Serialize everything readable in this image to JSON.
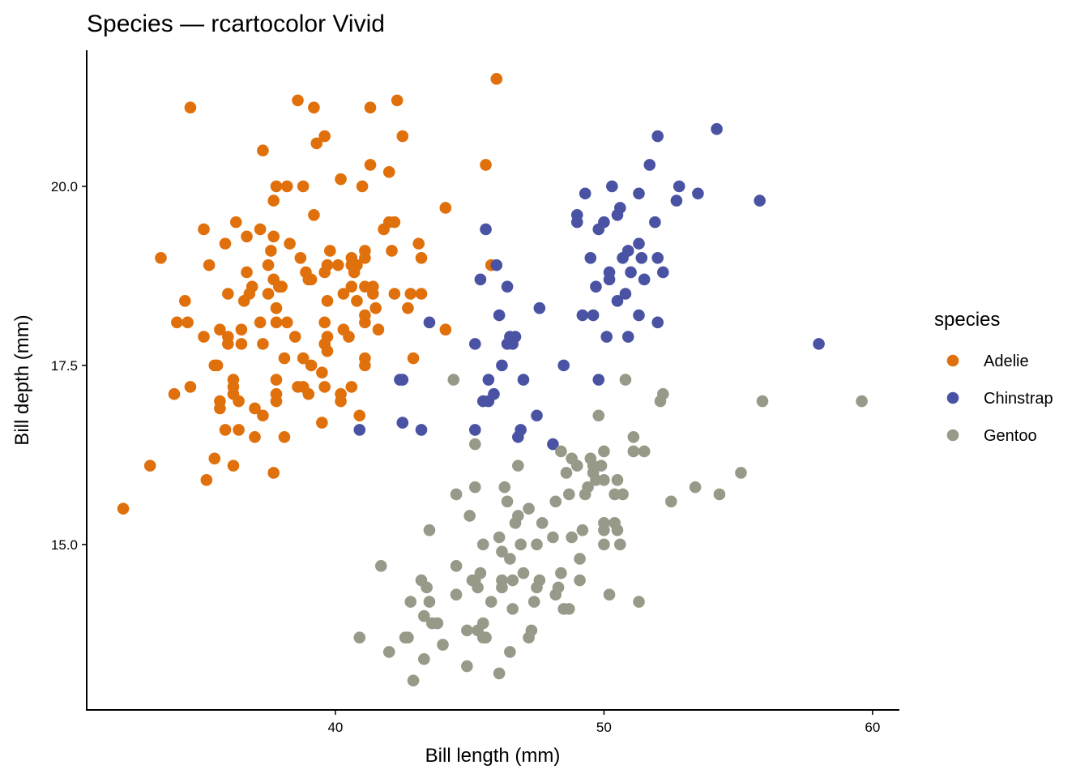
{
  "chart_data": {
    "type": "scatter",
    "title": "Species — rcartocolor Vivid",
    "xlabel": "Bill length (mm)",
    "ylabel": "Bill depth (mm)",
    "xlim": [
      30.74,
      61.0
    ],
    "ylim": [
      12.69,
      21.9
    ],
    "x_ticks": [
      40,
      50,
      60
    ],
    "x_tick_labels": [
      "40",
      "50",
      "60"
    ],
    "y_ticks": [
      15.0,
      17.5,
      20.0
    ],
    "y_tick_labels": [
      "15.0",
      "17.5",
      "20.0"
    ],
    "grid": false,
    "legend": {
      "title": "species",
      "placement": "right"
    },
    "series": [
      {
        "name": "Adelie",
        "color": "#E0700C",
        "points": [
          [
            32.1,
            15.5
          ],
          [
            33.1,
            16.1
          ],
          [
            33.5,
            19.0
          ],
          [
            34.6,
            21.1
          ],
          [
            34.1,
            18.1
          ],
          [
            34.4,
            18.4
          ],
          [
            34.5,
            18.1
          ],
          [
            34.0,
            17.1
          ],
          [
            34.6,
            17.2
          ],
          [
            35.1,
            17.9
          ],
          [
            35.1,
            19.4
          ],
          [
            35.3,
            18.9
          ],
          [
            35.2,
            15.9
          ],
          [
            35.5,
            16.2
          ],
          [
            35.5,
            17.5
          ],
          [
            35.6,
            17.5
          ],
          [
            35.7,
            18.0
          ],
          [
            35.7,
            17.0
          ],
          [
            35.7,
            16.9
          ],
          [
            35.9,
            19.2
          ],
          [
            36.0,
            17.9
          ],
          [
            36.0,
            17.8
          ],
          [
            36.0,
            18.5
          ],
          [
            35.9,
            16.6
          ],
          [
            36.3,
            19.5
          ],
          [
            36.2,
            17.3
          ],
          [
            36.2,
            17.2
          ],
          [
            36.2,
            17.1
          ],
          [
            36.2,
            16.1
          ],
          [
            36.4,
            17.0
          ],
          [
            36.5,
            18.0
          ],
          [
            36.4,
            16.6
          ],
          [
            36.5,
            17.8
          ],
          [
            36.6,
            18.4
          ],
          [
            36.7,
            19.3
          ],
          [
            36.7,
            18.8
          ],
          [
            36.8,
            18.5
          ],
          [
            36.9,
            18.6
          ],
          [
            37.0,
            16.9
          ],
          [
            37.0,
            16.5
          ],
          [
            37.2,
            18.1
          ],
          [
            37.3,
            17.8
          ],
          [
            37.2,
            19.4
          ],
          [
            37.3,
            20.5
          ],
          [
            37.3,
            16.8
          ],
          [
            37.5,
            18.5
          ],
          [
            37.5,
            18.9
          ],
          [
            37.6,
            19.1
          ],
          [
            37.7,
            19.8
          ],
          [
            37.7,
            19.3
          ],
          [
            37.7,
            18.7
          ],
          [
            37.7,
            16.0
          ],
          [
            37.8,
            20.0
          ],
          [
            37.8,
            18.1
          ],
          [
            37.8,
            18.3
          ],
          [
            37.8,
            17.3
          ],
          [
            37.8,
            17.1
          ],
          [
            37.8,
            17.0
          ],
          [
            37.9,
            18.6
          ],
          [
            38.0,
            18.6
          ],
          [
            38.1,
            17.6
          ],
          [
            38.1,
            16.5
          ],
          [
            38.2,
            20.0
          ],
          [
            38.2,
            18.1
          ],
          [
            38.3,
            19.2
          ],
          [
            38.5,
            17.9
          ],
          [
            38.6,
            17.2
          ],
          [
            38.6,
            21.2
          ],
          [
            38.7,
            19.0
          ],
          [
            38.8,
            17.6
          ],
          [
            38.8,
            20.0
          ],
          [
            38.8,
            17.2
          ],
          [
            38.9,
            18.8
          ],
          [
            39.0,
            17.1
          ],
          [
            39.0,
            18.7
          ],
          [
            39.1,
            18.7
          ],
          [
            39.1,
            17.5
          ],
          [
            39.2,
            19.6
          ],
          [
            39.2,
            21.1
          ],
          [
            39.3,
            20.6
          ],
          [
            39.5,
            17.4
          ],
          [
            39.5,
            16.7
          ],
          [
            39.6,
            20.7
          ],
          [
            39.6,
            18.8
          ],
          [
            39.6,
            18.1
          ],
          [
            39.6,
            17.8
          ],
          [
            39.6,
            17.2
          ],
          [
            39.7,
            17.9
          ],
          [
            39.7,
            18.4
          ],
          [
            39.7,
            18.9
          ],
          [
            39.8,
            19.1
          ],
          [
            39.7,
            17.7
          ],
          [
            40.1,
            18.9
          ],
          [
            40.2,
            20.1
          ],
          [
            40.2,
            17.1
          ],
          [
            40.2,
            17.0
          ],
          [
            40.3,
            18.0
          ],
          [
            40.3,
            18.5
          ],
          [
            40.5,
            17.9
          ],
          [
            40.6,
            18.6
          ],
          [
            40.6,
            18.9
          ],
          [
            40.6,
            19.0
          ],
          [
            40.6,
            17.2
          ],
          [
            40.7,
            18.8
          ],
          [
            40.8,
            18.4
          ],
          [
            40.8,
            18.9
          ],
          [
            40.9,
            16.8
          ],
          [
            41.0,
            20.0
          ],
          [
            41.1,
            19.1
          ],
          [
            41.1,
            19.0
          ],
          [
            41.1,
            18.6
          ],
          [
            41.1,
            18.2
          ],
          [
            41.1,
            18.1
          ],
          [
            41.1,
            17.6
          ],
          [
            41.1,
            17.5
          ],
          [
            41.3,
            21.1
          ],
          [
            41.3,
            20.3
          ],
          [
            41.4,
            18.6
          ],
          [
            41.4,
            18.5
          ],
          [
            41.5,
            18.3
          ],
          [
            41.6,
            18.0
          ],
          [
            42.0,
            20.2
          ],
          [
            41.8,
            19.4
          ],
          [
            42.0,
            19.5
          ],
          [
            42.1,
            19.1
          ],
          [
            42.2,
            19.5
          ],
          [
            42.2,
            18.5
          ],
          [
            42.3,
            21.2
          ],
          [
            42.5,
            20.7
          ],
          [
            42.7,
            18.3
          ],
          [
            42.8,
            18.5
          ],
          [
            42.9,
            17.6
          ],
          [
            43.1,
            19.2
          ],
          [
            43.2,
            19.0
          ],
          [
            43.2,
            18.5
          ],
          [
            44.1,
            19.7
          ],
          [
            44.1,
            18.0
          ],
          [
            45.6,
            20.3
          ],
          [
            45.8,
            18.9
          ],
          [
            46.0,
            21.5
          ]
        ]
      },
      {
        "name": "Chinstrap",
        "color": "#4A53A3",
        "points": [
          [
            40.9,
            16.6
          ],
          [
            42.4,
            17.3
          ],
          [
            42.5,
            17.3
          ],
          [
            42.5,
            16.7
          ],
          [
            43.2,
            16.6
          ],
          [
            43.5,
            18.1
          ],
          [
            45.2,
            17.8
          ],
          [
            45.2,
            16.6
          ],
          [
            45.4,
            18.7
          ],
          [
            45.5,
            17.0
          ],
          [
            45.6,
            19.4
          ],
          [
            45.7,
            17.0
          ],
          [
            45.7,
            17.3
          ],
          [
            45.9,
            17.1
          ],
          [
            46.0,
            18.9
          ],
          [
            46.1,
            18.2
          ],
          [
            46.2,
            17.5
          ],
          [
            46.4,
            18.6
          ],
          [
            46.4,
            17.8
          ],
          [
            46.5,
            17.9
          ],
          [
            46.6,
            17.8
          ],
          [
            46.7,
            17.9
          ],
          [
            46.8,
            16.5
          ],
          [
            46.9,
            16.6
          ],
          [
            47.0,
            17.3
          ],
          [
            47.5,
            16.8
          ],
          [
            47.6,
            18.3
          ],
          [
            48.1,
            16.4
          ],
          [
            48.5,
            17.5
          ],
          [
            49.0,
            19.6
          ],
          [
            49.0,
            19.5
          ],
          [
            49.2,
            18.2
          ],
          [
            49.3,
            19.9
          ],
          [
            49.5,
            19.0
          ],
          [
            49.6,
            18.2
          ],
          [
            49.7,
            18.6
          ],
          [
            49.8,
            17.3
          ],
          [
            49.8,
            19.4
          ],
          [
            50.0,
            19.5
          ],
          [
            50.1,
            17.9
          ],
          [
            50.2,
            18.7
          ],
          [
            50.2,
            18.8
          ],
          [
            50.3,
            20.0
          ],
          [
            50.5,
            19.6
          ],
          [
            50.6,
            19.7
          ],
          [
            50.5,
            18.4
          ],
          [
            50.7,
            19.0
          ],
          [
            50.8,
            18.5
          ],
          [
            50.9,
            19.1
          ],
          [
            50.9,
            17.9
          ],
          [
            51.0,
            18.8
          ],
          [
            51.3,
            19.2
          ],
          [
            51.3,
            18.2
          ],
          [
            51.3,
            19.9
          ],
          [
            51.4,
            19.0
          ],
          [
            51.5,
            18.7
          ],
          [
            51.7,
            20.3
          ],
          [
            51.9,
            19.5
          ],
          [
            52.0,
            20.7
          ],
          [
            52.0,
            19.0
          ],
          [
            52.0,
            18.1
          ],
          [
            52.2,
            18.8
          ],
          [
            52.7,
            19.8
          ],
          [
            52.8,
            20.0
          ],
          [
            53.5,
            19.9
          ],
          [
            54.2,
            20.8
          ],
          [
            55.8,
            19.8
          ],
          [
            58.0,
            17.8
          ]
        ]
      },
      {
        "name": "Gentoo",
        "color": "#979A88",
        "points": [
          [
            40.9,
            13.7
          ],
          [
            41.7,
            14.7
          ],
          [
            42.0,
            13.5
          ],
          [
            42.6,
            13.7
          ],
          [
            42.7,
            13.7
          ],
          [
            42.8,
            14.2
          ],
          [
            42.9,
            13.1
          ],
          [
            43.2,
            14.5
          ],
          [
            43.3,
            13.4
          ],
          [
            43.4,
            14.4
          ],
          [
            43.3,
            14.0
          ],
          [
            43.5,
            14.2
          ],
          [
            43.6,
            13.9
          ],
          [
            43.8,
            13.9
          ],
          [
            43.5,
            15.2
          ],
          [
            44.0,
            13.6
          ],
          [
            44.4,
            17.3
          ],
          [
            44.5,
            15.7
          ],
          [
            44.5,
            14.7
          ],
          [
            44.5,
            14.3
          ],
          [
            44.9,
            13.3
          ],
          [
            44.9,
            13.8
          ],
          [
            45.0,
            15.4
          ],
          [
            45.1,
            14.5
          ],
          [
            45.2,
            14.5
          ],
          [
            45.2,
            16.4
          ],
          [
            45.2,
            15.8
          ],
          [
            45.3,
            14.4
          ],
          [
            45.3,
            13.8
          ],
          [
            45.4,
            14.6
          ],
          [
            45.5,
            15.0
          ],
          [
            45.5,
            13.9
          ],
          [
            45.5,
            13.7
          ],
          [
            45.6,
            13.7
          ],
          [
            45.8,
            14.2
          ],
          [
            46.1,
            15.1
          ],
          [
            46.1,
            13.2
          ],
          [
            46.2,
            14.9
          ],
          [
            46.2,
            14.5
          ],
          [
            46.2,
            14.4
          ],
          [
            46.3,
            15.8
          ],
          [
            46.4,
            15.6
          ],
          [
            46.5,
            14.8
          ],
          [
            46.5,
            13.5
          ],
          [
            46.6,
            14.1
          ],
          [
            46.6,
            14.5
          ],
          [
            46.7,
            15.3
          ],
          [
            46.8,
            16.1
          ],
          [
            46.8,
            15.4
          ],
          [
            46.9,
            15.0
          ],
          [
            47.0,
            14.6
          ],
          [
            47.2,
            15.5
          ],
          [
            47.2,
            13.7
          ],
          [
            47.3,
            13.8
          ],
          [
            47.4,
            14.2
          ],
          [
            47.5,
            15.0
          ],
          [
            47.5,
            14.4
          ],
          [
            47.7,
            15.3
          ],
          [
            47.6,
            14.5
          ],
          [
            48.1,
            15.1
          ],
          [
            48.2,
            15.6
          ],
          [
            48.2,
            14.3
          ],
          [
            48.3,
            14.4
          ],
          [
            48.4,
            14.6
          ],
          [
            48.4,
            16.3
          ],
          [
            48.5,
            14.1
          ],
          [
            48.6,
            16.0
          ],
          [
            48.7,
            15.7
          ],
          [
            48.7,
            14.1
          ],
          [
            48.8,
            16.2
          ],
          [
            48.8,
            15.1
          ],
          [
            49.0,
            16.1
          ],
          [
            49.1,
            14.5
          ],
          [
            49.1,
            14.8
          ],
          [
            49.2,
            15.2
          ],
          [
            49.3,
            15.7
          ],
          [
            49.4,
            15.8
          ],
          [
            49.5,
            16.2
          ],
          [
            49.6,
            16.1
          ],
          [
            49.6,
            16.0
          ],
          [
            49.7,
            15.9
          ],
          [
            49.8,
            16.8
          ],
          [
            49.9,
            16.1
          ],
          [
            50.0,
            16.3
          ],
          [
            50.0,
            15.9
          ],
          [
            50.0,
            15.3
          ],
          [
            50.0,
            15.2
          ],
          [
            50.0,
            15.0
          ],
          [
            50.2,
            14.3
          ],
          [
            50.4,
            15.7
          ],
          [
            50.4,
            15.3
          ],
          [
            50.5,
            15.2
          ],
          [
            50.5,
            15.9
          ],
          [
            50.6,
            15.0
          ],
          [
            50.7,
            15.7
          ],
          [
            50.8,
            17.3
          ],
          [
            51.1,
            16.5
          ],
          [
            51.1,
            16.3
          ],
          [
            51.3,
            14.2
          ],
          [
            51.5,
            16.3
          ],
          [
            52.1,
            17.0
          ],
          [
            52.2,
            17.1
          ],
          [
            52.5,
            15.6
          ],
          [
            53.4,
            15.8
          ],
          [
            54.3,
            15.7
          ],
          [
            55.1,
            16.0
          ],
          [
            55.9,
            17.0
          ],
          [
            59.6,
            17.0
          ]
        ]
      }
    ]
  }
}
